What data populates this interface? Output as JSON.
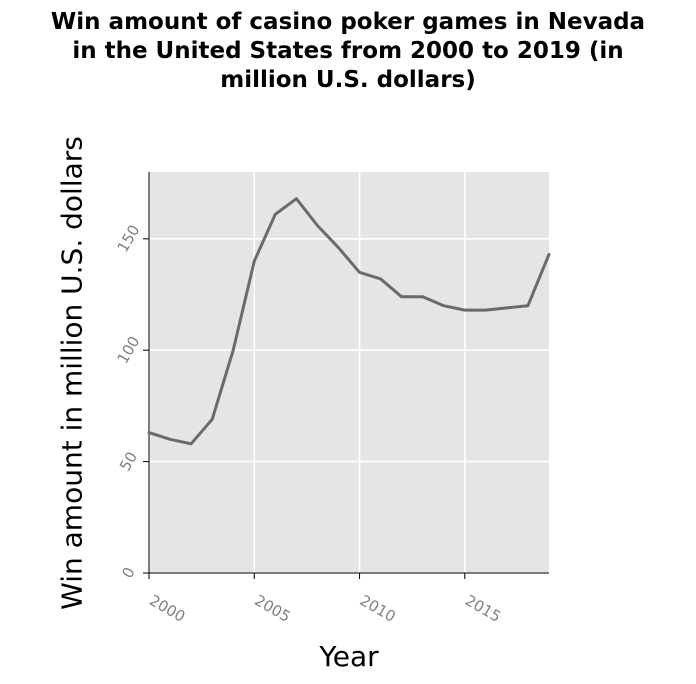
{
  "chart_data": {
    "type": "line",
    "title_lines": [
      "Win amount of casino poker games in Nevada",
      "in the United States from 2000 to 2019 (in",
      "million U.S. dollars)"
    ],
    "xlabel": "Year",
    "ylabel": "Win amount in million U.S. dollars",
    "x": [
      2000,
      2001,
      2002,
      2003,
      2004,
      2005,
      2006,
      2007,
      2008,
      2009,
      2010,
      2011,
      2012,
      2013,
      2014,
      2015,
      2016,
      2017,
      2018,
      2019
    ],
    "series": [
      {
        "values": [
          63,
          60,
          58,
          69,
          100,
          140,
          161,
          168,
          156,
          146,
          135,
          132,
          124,
          124,
          120,
          118,
          118,
          119,
          120,
          143
        ]
      }
    ],
    "xlim": [
      2000,
      2019
    ],
    "ylim": [
      0,
      180
    ],
    "xticks": [
      2000,
      2005,
      2010,
      2015
    ],
    "yticks": [
      0,
      50,
      100,
      150
    ],
    "grid": true,
    "colors": {
      "plot_background": "#e5e5e5",
      "grid": "#ffffff",
      "line": "#6b6b6b",
      "tick_label": "#7f7f7f"
    }
  }
}
